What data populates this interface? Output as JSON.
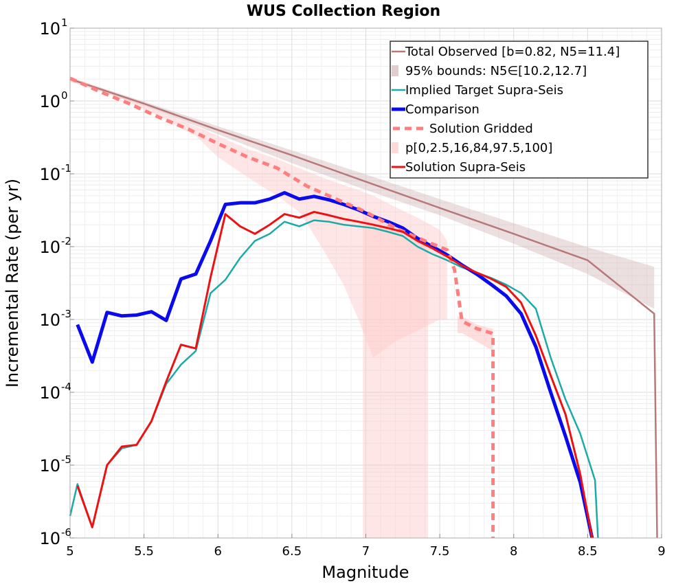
{
  "chart_data": {
    "type": "line",
    "title": "WUS Collection Region",
    "xlabel": "Magnitude",
    "ylabel": "Incremental Rate (per yr)",
    "xlim": [
      5,
      9
    ],
    "ylim_log10": [
      -6,
      1
    ],
    "yscale": "log",
    "grid": true,
    "legend_position": "top-right",
    "xticks": [
      "5",
      "5.5",
      "6",
      "6.5",
      "7",
      "7.5",
      "8",
      "8.5",
      "9"
    ],
    "xtick_values": [
      5,
      5.5,
      6,
      6.5,
      7,
      7.5,
      8,
      8.5,
      9
    ],
    "yticks": [
      {
        "base": "10",
        "exp": "-6",
        "value": -6
      },
      {
        "base": "10",
        "exp": "-5",
        "value": -5
      },
      {
        "base": "10",
        "exp": "-4",
        "value": -4
      },
      {
        "base": "10",
        "exp": "-3",
        "value": -3
      },
      {
        "base": "10",
        "exp": "-2",
        "value": -2
      },
      {
        "base": "10",
        "exp": "-1",
        "value": -1
      },
      {
        "base": "10",
        "exp": "0",
        "value": 0
      },
      {
        "base": "10",
        "exp": "1",
        "value": 1
      }
    ],
    "bands": [
      {
        "name": "95% bounds: N5∈[10.2,12.7]",
        "color": "#d4b8bb",
        "opacity": 0.45,
        "x": [
          5,
          5.5,
          6,
          6.5,
          7,
          7.5,
          8,
          8.5,
          8.95
        ],
        "upper": [
          2.1,
          0.98,
          0.45,
          0.21,
          0.098,
          0.045,
          0.021,
          0.0098,
          0.0053
        ],
        "lower": [
          1.85,
          0.86,
          0.35,
          0.14,
          0.06,
          0.027,
          0.011,
          0.0042,
          0.0014
        ]
      },
      {
        "name": "p[0,2.5,16,84,97.5,100]",
        "color": "#ffc8c8",
        "opacity": 0.45,
        "x": [
          5,
          5.3,
          5.6,
          5.85,
          6.0,
          6.2,
          6.4,
          6.55,
          6.7,
          6.85,
          6.95,
          7.05,
          7.2,
          7.35,
          7.5,
          7.55
        ],
        "upper": [
          2.15,
          1.3,
          0.72,
          0.45,
          0.33,
          0.22,
          0.16,
          0.12,
          0.09,
          0.07,
          0.06,
          0.05,
          0.035,
          0.025,
          0.017,
          0.012
        ],
        "lower": [
          2.0,
          1.2,
          0.62,
          0.33,
          0.17,
          0.09,
          0.05,
          0.03,
          0.01,
          0.003,
          0.001,
          0.0003,
          0.0005,
          0.0007,
          0.001,
          0.001
        ]
      },
      {
        "name": "p-band-tail",
        "color": "#ffc8c8",
        "opacity": 0.45,
        "x": [
          6.98,
          7.42
        ],
        "upper": [
          0.03,
          0.012
        ],
        "lower": [
          1e-06,
          1e-06
        ]
      },
      {
        "name": "p-band-step",
        "color": "#ffc8c8",
        "opacity": 0.6,
        "x": [
          7.62,
          7.65,
          7.75,
          7.85,
          7.86
        ],
        "upper": [
          0.0011,
          0.0011,
          0.00085,
          0.00075,
          0.00075
        ],
        "lower": [
          0.00065,
          0.00065,
          0.0005,
          0.00038,
          0.00038
        ]
      }
    ],
    "series": [
      {
        "name": "Total Observed [b=0.82, N5=11.4]",
        "color": "#b87878",
        "width": 2.5,
        "dash": "",
        "x": [
          5,
          5.5,
          6,
          6.5,
          7,
          7.5,
          8,
          8.5,
          8.95,
          8.97
        ],
        "y": [
          2.0,
          0.92,
          0.4,
          0.18,
          0.078,
          0.034,
          0.015,
          0.0065,
          0.0012,
          1e-06
        ]
      },
      {
        "name": "Implied Target Supra-Seis",
        "color": "#1aaaa8",
        "width": 2.5,
        "dash": "",
        "x": [
          5.0,
          5.05,
          5.15,
          5.25,
          5.35,
          5.45,
          5.55,
          5.65,
          5.75,
          5.85,
          5.95,
          6.05,
          6.15,
          6.25,
          6.35,
          6.45,
          6.55,
          6.65,
          6.75,
          6.85,
          6.95,
          7.05,
          7.15,
          7.25,
          7.35,
          7.45,
          7.55,
          7.65,
          7.75,
          7.85,
          7.95,
          8.05,
          8.15,
          8.25,
          8.35,
          8.45,
          8.55,
          8.57
        ],
        "y": [
          2e-06,
          5.5e-06,
          1.4e-06,
          1e-05,
          1.7e-05,
          1.9e-05,
          4e-05,
          0.00013,
          0.00024,
          0.00037,
          0.0023,
          0.0035,
          0.007,
          0.012,
          0.015,
          0.022,
          0.019,
          0.023,
          0.022,
          0.02,
          0.019,
          0.018,
          0.016,
          0.014,
          0.01,
          0.0079,
          0.0065,
          0.0052,
          0.0044,
          0.0037,
          0.003,
          0.0023,
          0.0014,
          0.0003,
          8e-05,
          2.7e-05,
          6.2e-06,
          1e-06
        ]
      },
      {
        "name": "Comparison",
        "color": "#0a0aee",
        "width": 5,
        "dash": "",
        "x": [
          5.05,
          5.15,
          5.25,
          5.35,
          5.45,
          5.55,
          5.65,
          5.75,
          5.85,
          5.95,
          6.05,
          6.15,
          6.25,
          6.35,
          6.45,
          6.55,
          6.65,
          6.75,
          6.85,
          6.95,
          7.05,
          7.15,
          7.25,
          7.35,
          7.45,
          7.55,
          7.65,
          7.75,
          7.85,
          7.95,
          8.05,
          8.15,
          8.25,
          8.35,
          8.45,
          8.53
        ],
        "y": [
          0.00085,
          0.00026,
          0.00125,
          0.00112,
          0.00115,
          0.00128,
          0.00097,
          0.0036,
          0.0042,
          0.012,
          0.038,
          0.04,
          0.04,
          0.045,
          0.055,
          0.045,
          0.049,
          0.044,
          0.038,
          0.032,
          0.026,
          0.022,
          0.018,
          0.013,
          0.01,
          0.0077,
          0.0056,
          0.0042,
          0.003,
          0.0021,
          0.0012,
          0.00042,
          0.0001,
          2.5e-05,
          5.8e-06,
          1e-06
        ]
      },
      {
        "name": "Solution Gridded",
        "color": "#ff7f7f",
        "width": 5,
        "dash": "10 7",
        "x": [
          5,
          5.2,
          5.4,
          5.6,
          5.8,
          6.0,
          6.2,
          6.4,
          6.6,
          6.8,
          7.0,
          7.2,
          7.4,
          7.55,
          7.6,
          7.65,
          7.75,
          7.85,
          7.86,
          7.86
        ],
        "y": [
          2.05,
          1.35,
          0.92,
          0.6,
          0.41,
          0.26,
          0.17,
          0.12,
          0.068,
          0.045,
          0.03,
          0.018,
          0.012,
          0.009,
          0.0048,
          0.00095,
          0.00075,
          0.00065,
          0.00063,
          1e-06
        ]
      },
      {
        "name": "Solution Supra-Seis",
        "color": "#ee1111",
        "width": 3,
        "dash": "",
        "x": [
          5.05,
          5.15,
          5.25,
          5.35,
          5.45,
          5.55,
          5.65,
          5.75,
          5.85,
          5.95,
          6.05,
          6.15,
          6.25,
          6.35,
          6.45,
          6.55,
          6.65,
          6.75,
          6.85,
          6.95,
          7.05,
          7.15,
          7.25,
          7.35,
          7.45,
          7.55,
          7.65,
          7.75,
          7.85,
          7.95,
          8.05,
          8.15,
          8.25,
          8.35,
          8.45,
          8.53
        ],
        "y": [
          5.2e-06,
          1.4e-06,
          1e-05,
          1.8e-05,
          1.9e-05,
          4e-05,
          0.00014,
          0.00045,
          0.0004,
          0.0038,
          0.028,
          0.019,
          0.015,
          0.02,
          0.028,
          0.025,
          0.03,
          0.027,
          0.024,
          0.022,
          0.02,
          0.018,
          0.016,
          0.012,
          0.0095,
          0.0073,
          0.0055,
          0.0044,
          0.0036,
          0.0028,
          0.0017,
          0.0006,
          0.00017,
          5e-05,
          7.5e-06,
          1e-06
        ]
      }
    ],
    "legend": [
      {
        "label": "Total Observed [b=0.82, N5=11.4]",
        "kind": "line",
        "color": "#b87878",
        "width": 2.5,
        "dash": ""
      },
      {
        "label": "95% bounds: N5∈[10.2,12.7]",
        "kind": "band",
        "color": "#d4b8bb",
        "width": 0,
        "dash": ""
      },
      {
        "label": "Implied Target Supra-Seis",
        "kind": "line",
        "color": "#1aaaa8",
        "width": 2.5,
        "dash": ""
      },
      {
        "label": "Comparison",
        "kind": "line",
        "color": "#0a0aee",
        "width": 5,
        "dash": ""
      },
      {
        "label": "Solution Gridded",
        "kind": "line",
        "color": "#ff7f7f",
        "width": 5,
        "dash": "10 7"
      },
      {
        "label": "p[0,2.5,16,84,97.5,100]",
        "kind": "band",
        "color": "#ffc8c8",
        "width": 0,
        "dash": ""
      },
      {
        "label": "Solution Supra-Seis",
        "kind": "line",
        "color": "#ee1111",
        "width": 3,
        "dash": ""
      }
    ]
  }
}
